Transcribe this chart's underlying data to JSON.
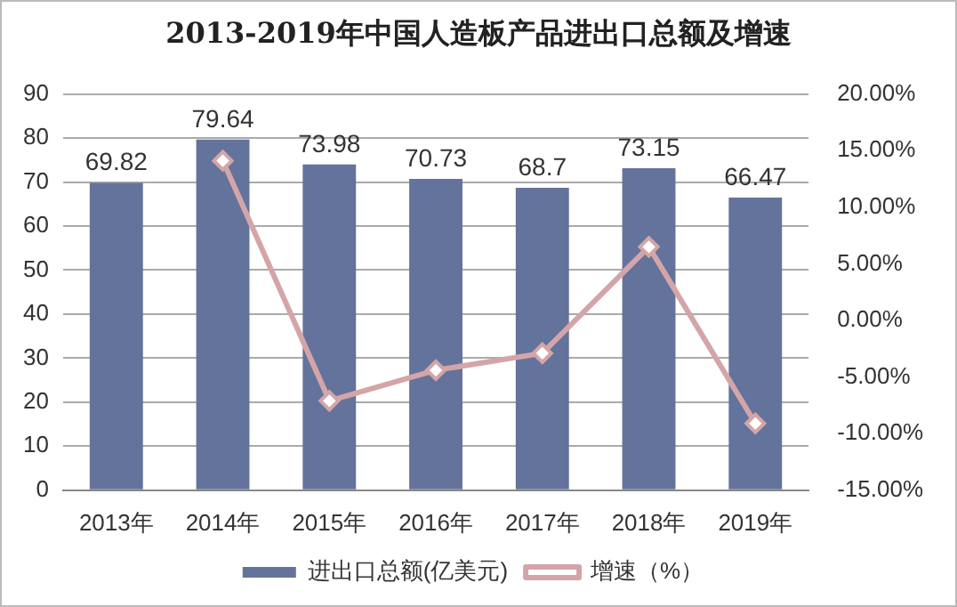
{
  "chart_data": {
    "type": "bar",
    "title": "2013-2019年中国人造板产品进出口总额及增速",
    "categories": [
      "2013年",
      "2014年",
      "2015年",
      "2016年",
      "2017年",
      "2018年",
      "2019年"
    ],
    "series": [
      {
        "name": "进出口总额(亿美元)",
        "color": "#64739b",
        "values": [
          69.82,
          79.64,
          73.98,
          70.73,
          68.7,
          73.15,
          66.47
        ],
        "value_labels": [
          "69.82",
          "79.64",
          "73.98",
          "70.73",
          "68.7",
          "73.15",
          "66.47"
        ]
      },
      {
        "name": "增速（%）",
        "type": "line",
        "axis": "y2",
        "color": "#d4a5a8",
        "marker": "diamond",
        "values": [
          null,
          14.1,
          -7.1,
          -4.4,
          -2.9,
          6.5,
          -9.1
        ]
      }
    ],
    "ylim": [
      0,
      90
    ],
    "yticks": [
      0,
      10,
      20,
      30,
      40,
      50,
      60,
      70,
      80,
      90
    ],
    "y2lim": [
      -15,
      20
    ],
    "y2ticks": [
      {
        "value": -15,
        "label": "-15.00%"
      },
      {
        "value": -10,
        "label": "-10.00%"
      },
      {
        "value": -5,
        "label": "-5.00%"
      },
      {
        "value": 0,
        "label": "0.00%"
      },
      {
        "value": 5,
        "label": "5.00%"
      },
      {
        "value": 10,
        "label": "10.00%"
      },
      {
        "value": 15,
        "label": "15.00%"
      },
      {
        "value": 20,
        "label": "20.00%"
      }
    ],
    "grid": "y",
    "legend": "bottom"
  }
}
